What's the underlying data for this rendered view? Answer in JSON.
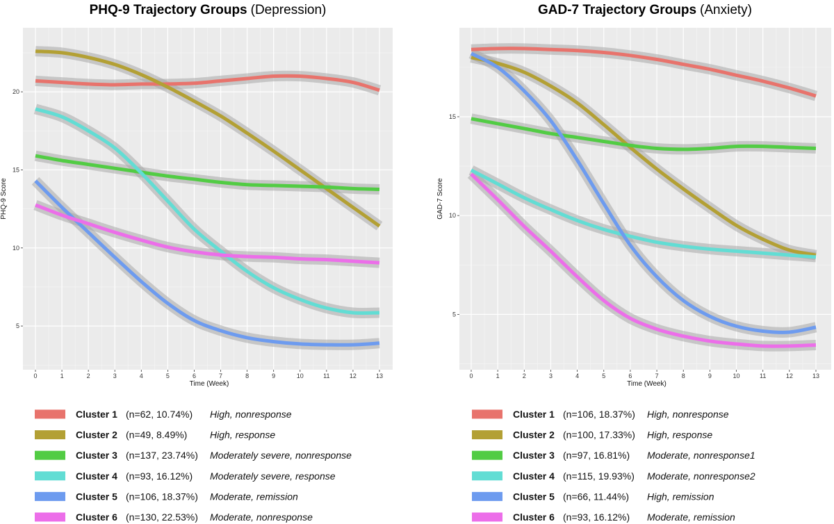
{
  "chart_data": [
    {
      "type": "line",
      "title_bold": "PHQ-9 Trajectory Groups",
      "title_rest": "(Depression)",
      "xlabel": "Time (Week)",
      "ylabel": "PHQ-9 Score",
      "x": [
        0,
        1,
        2,
        3,
        4,
        5,
        6,
        7,
        8,
        9,
        10,
        11,
        12,
        13
      ],
      "xticks": [
        "0",
        "1",
        "2",
        "3",
        "4",
        "5",
        "6",
        "7",
        "8",
        "9",
        "10",
        "11",
        "12",
        "13"
      ],
      "yticks": [
        5,
        10,
        15,
        20
      ],
      "ylim": [
        2.2,
        24.1
      ],
      "grid": true,
      "legend_position": "bottom",
      "series": [
        {
          "name": "Cluster 1",
          "n": "(n=62, 10.74%)",
          "desc": "High, nonresponse",
          "color": "#e8736c",
          "values": [
            20.7,
            20.6,
            20.5,
            20.45,
            20.5,
            20.5,
            20.55,
            20.7,
            20.85,
            21.0,
            21.0,
            20.85,
            20.6,
            20.1
          ]
        },
        {
          "name": "Cluster 2",
          "n": "(n=49, 8.49%)",
          "desc": "High, response",
          "color": "#b3a034",
          "values": [
            22.6,
            22.5,
            22.2,
            21.75,
            21.1,
            20.3,
            19.4,
            18.45,
            17.35,
            16.2,
            15.0,
            13.8,
            12.6,
            11.4
          ]
        },
        {
          "name": "Cluster 3",
          "n": "(n=137, 23.74%)",
          "desc": "Moderately severe, nonresponse",
          "color": "#52cc44",
          "values": [
            15.9,
            15.6,
            15.35,
            15.1,
            14.85,
            14.6,
            14.4,
            14.2,
            14.05,
            14.0,
            13.95,
            13.9,
            13.8,
            13.75
          ]
        },
        {
          "name": "Cluster 4",
          "n": "(n=93, 16.12%)",
          "desc": "Moderately severe, response",
          "color": "#62ddd4",
          "values": [
            18.9,
            18.4,
            17.5,
            16.4,
            14.8,
            13.0,
            11.2,
            9.8,
            8.5,
            7.45,
            6.7,
            6.15,
            5.85,
            5.85
          ]
        },
        {
          "name": "Cluster 5",
          "n": "(n=106, 18.37%)",
          "desc": "Moderate, remission",
          "color": "#6d9bef",
          "values": [
            14.3,
            12.6,
            11.0,
            9.4,
            7.85,
            6.45,
            5.35,
            4.7,
            4.25,
            4.0,
            3.85,
            3.8,
            3.8,
            3.9
          ]
        },
        {
          "name": "Cluster 6",
          "n": "(n=130, 22.53%)",
          "desc": "Moderate, nonresponse",
          "color": "#ec6ee9",
          "values": [
            12.75,
            12.1,
            11.55,
            11.0,
            10.5,
            10.05,
            9.75,
            9.55,
            9.45,
            9.4,
            9.3,
            9.25,
            9.15,
            9.05
          ]
        }
      ]
    },
    {
      "type": "line",
      "title_bold": "GAD-7 Trajectory Groups",
      "title_rest": "(Anxiety)",
      "xlabel": "Time (Week)",
      "ylabel": "GAD-7 Score",
      "x": [
        0,
        1,
        2,
        3,
        4,
        5,
        6,
        7,
        8,
        9,
        10,
        11,
        12,
        13
      ],
      "xticks": [
        "0",
        "1",
        "2",
        "3",
        "4",
        "5",
        "6",
        "7",
        "8",
        "9",
        "10",
        "11",
        "12",
        "13"
      ],
      "yticks": [
        5,
        10,
        15
      ],
      "ylim": [
        2.2,
        19.5
      ],
      "grid": true,
      "legend_position": "bottom",
      "series": [
        {
          "name": "Cluster 1",
          "n": "(n=106, 18.37%)",
          "desc": "High, nonresponse",
          "color": "#e8736c",
          "values": [
            18.4,
            18.45,
            18.45,
            18.4,
            18.35,
            18.25,
            18.1,
            17.9,
            17.65,
            17.4,
            17.1,
            16.8,
            16.45,
            16.05
          ]
        },
        {
          "name": "Cluster 2",
          "n": "(n=100, 17.33%)",
          "desc": "High, response",
          "color": "#b3a034",
          "values": [
            18.0,
            17.7,
            17.25,
            16.55,
            15.7,
            14.6,
            13.45,
            12.35,
            11.35,
            10.4,
            9.5,
            8.8,
            8.25,
            8.0
          ]
        },
        {
          "name": "Cluster 3",
          "n": "(n=97, 16.81%)",
          "desc": "Moderate, nonresponse1",
          "color": "#52cc44",
          "values": [
            14.9,
            14.65,
            14.4,
            14.15,
            13.95,
            13.75,
            13.55,
            13.4,
            13.35,
            13.4,
            13.5,
            13.5,
            13.45,
            13.4
          ]
        },
        {
          "name": "Cluster 4",
          "n": "(n=115, 19.93%)",
          "desc": "Moderate, nonresponse2",
          "color": "#62ddd4",
          "values": [
            12.3,
            11.6,
            10.9,
            10.3,
            9.75,
            9.3,
            8.95,
            8.65,
            8.45,
            8.3,
            8.2,
            8.1,
            8.0,
            7.9
          ]
        },
        {
          "name": "Cluster 5",
          "n": "(n=66, 11.44%)",
          "desc": "High, remission",
          "color": "#6d9bef",
          "values": [
            18.2,
            17.5,
            16.3,
            14.8,
            12.8,
            10.6,
            8.5,
            6.9,
            5.7,
            4.9,
            4.4,
            4.15,
            4.1,
            4.35
          ]
        },
        {
          "name": "Cluster 6",
          "n": "(n=93, 16.12%)",
          "desc": "Moderate, remission",
          "color": "#ec6ee9",
          "values": [
            12.1,
            10.8,
            9.45,
            8.2,
            6.9,
            5.7,
            4.8,
            4.25,
            3.9,
            3.65,
            3.5,
            3.4,
            3.4,
            3.45
          ]
        }
      ]
    }
  ]
}
